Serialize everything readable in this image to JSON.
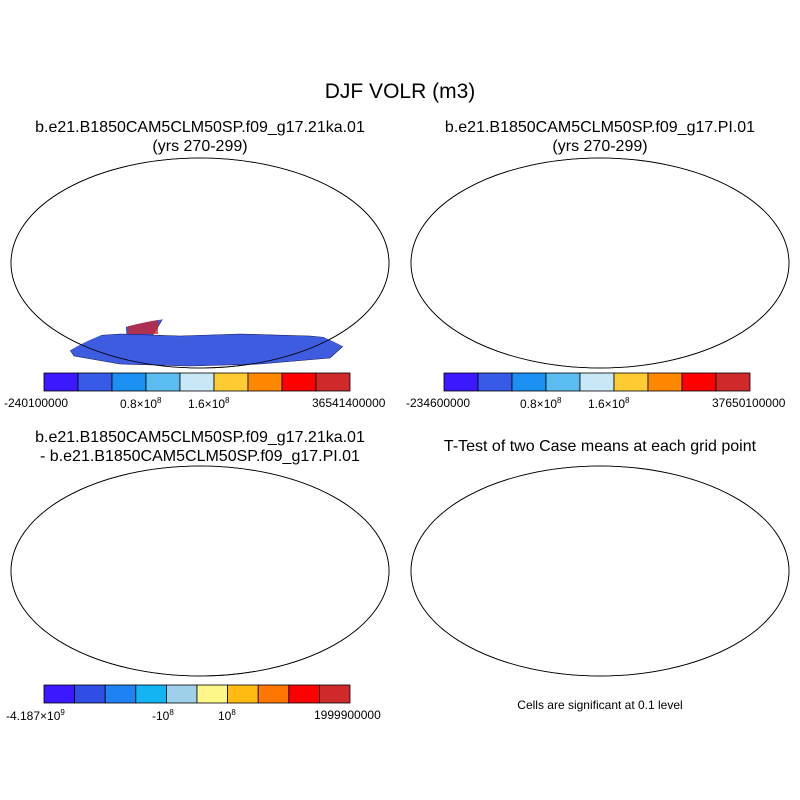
{
  "main_title": "DJF VOLR (m3)",
  "panels": [
    {
      "id": "case1",
      "title_line1": "b.e21.B1850CAM5CLM50SP.f09_g17.21ka.01",
      "title_line2": "(yrs 270-299)"
    },
    {
      "id": "case2",
      "title_line1": "b.e21.B1850CAM5CLM50SP.f09_g17.PI.01",
      "title_line2": "(yrs 270-299)"
    },
    {
      "id": "diff",
      "title_line1": "b.e21.B1850CAM5CLM50SP.f09_g17.21ka.01",
      "title_line2": "- b.e21.B1850CAM5CLM50SP.f09_g17.PI.01"
    },
    {
      "id": "ttest",
      "title_line1": "T-Test of two Case means at each grid point",
      "title_line2": ""
    }
  ],
  "colorbars": [
    {
      "colors": [
        "#3b18ff",
        "#3659e6",
        "#1b8ff2",
        "#5bbcf0",
        "#c9e8f7",
        "#ffcc33",
        "#ff8800",
        "#ff0000",
        "#cf2a2a"
      ],
      "labels": {
        "min": "-240100000",
        "mid1": "0.8×10",
        "mid1_exp": "8",
        "mid2": "1.6×10",
        "mid2_exp": "8",
        "max": "36541400000"
      }
    },
    {
      "colors": [
        "#3b18ff",
        "#3659e6",
        "#1b8ff2",
        "#5bbcf0",
        "#c9e8f7",
        "#ffcc33",
        "#ff8800",
        "#ff0000",
        "#cf2a2a"
      ],
      "labels": {
        "min": "-234600000",
        "mid1": "0.8×10",
        "mid1_exp": "8",
        "mid2": "1.6×10",
        "mid2_exp": "8",
        "max": "37650100000"
      }
    },
    {
      "colors": [
        "#3b18ff",
        "#2f4ee6",
        "#1e82f2",
        "#12b4f2",
        "#9ed0ea",
        "#fff68a",
        "#ffbb11",
        "#ff7700",
        "#ff0000",
        "#cf2a2a"
      ],
      "labels": {
        "min": "-4.187×10",
        "min_exp": "9",
        "mid1": "-10",
        "mid1_exp": "8",
        "mid2": "10",
        "mid2_exp": "8",
        "max": "1999900000"
      }
    }
  ],
  "significance_note": "Cells are significant at 0.1 level",
  "colors": {
    "case_ocean_land": "#3d5ce0",
    "diff_land": "#fdf08a",
    "diff_light": "#a8d4ec",
    "ttest_land": "#ff0000"
  }
}
